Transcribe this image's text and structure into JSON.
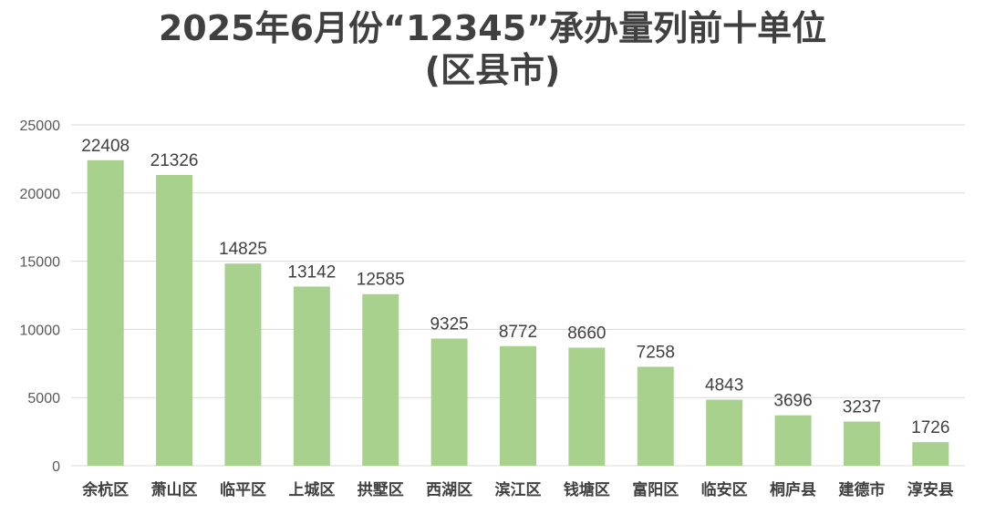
{
  "chart_data": {
    "type": "bar",
    "title_line1": "2025年6月份“12345”承办量列前十单位",
    "title_line2": "(区县市)",
    "categories": [
      "余杭区",
      "萧山区",
      "临平区",
      "上城区",
      "拱墅区",
      "西湖区",
      "滨江区",
      "钱塘区",
      "富阳区",
      "临安区",
      "桐庐县",
      "建德市",
      "淳安县"
    ],
    "values": [
      22408,
      21326,
      14825,
      13142,
      12585,
      9325,
      8772,
      8660,
      7258,
      4843,
      3696,
      3237,
      1726
    ],
    "ylim": [
      0,
      25000
    ],
    "yticks": [
      0,
      5000,
      10000,
      15000,
      20000,
      25000
    ],
    "grid": true,
    "bar_color": "#a9d18e",
    "grid_color": "#d9d9d9",
    "text_color": "#404040"
  }
}
